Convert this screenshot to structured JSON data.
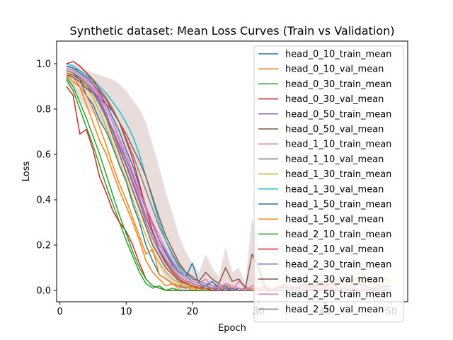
{
  "chart_data": {
    "type": "line",
    "title": "Synthetic dataset: Mean Loss Curves (Train vs Validation)",
    "xlabel": "Epoch",
    "ylabel": "Loss",
    "xlim": [
      -0.5,
      52.5
    ],
    "ylim": [
      -0.05,
      1.1
    ],
    "xticks": [
      0,
      10,
      20,
      30,
      40,
      50
    ],
    "yticks": [
      0.0,
      0.2,
      0.4,
      0.6,
      0.8,
      1.0
    ],
    "xtick_labels": [
      "0",
      "10",
      "20",
      "30",
      "40",
      "50"
    ],
    "ytick_labels": [
      "0.0",
      "0.2",
      "0.4",
      "0.6",
      "0.8",
      "1.0"
    ],
    "legend_position": "upper-right",
    "grid": false,
    "band": {
      "series": "head_2_30_val_mean",
      "color": "#8c564b",
      "opacity": 0.2
    },
    "band_lower": [
      0.91,
      0.88,
      0.84,
      0.8,
      0.78,
      0.74,
      0.7,
      0.64,
      0.57,
      0.5,
      0.42,
      0.34,
      0.27,
      0.18,
      0.1,
      0.05,
      0.02,
      0.0,
      0.0,
      0.0,
      0.0,
      0.0,
      0.0,
      0.0,
      0.0,
      0.0,
      0.0,
      0.0,
      0.0,
      0.0,
      0.0,
      0.0,
      0.0,
      0.0,
      0.0,
      0.0,
      0.0,
      0.0,
      0.0,
      0.0,
      0.0,
      0.0,
      0.0,
      0.0,
      0.0,
      0.0,
      0.0,
      0.0,
      0.0,
      0.0
    ],
    "band_upper": [
      0.99,
      1.0,
      0.99,
      0.97,
      0.96,
      0.95,
      0.94,
      0.93,
      0.91,
      0.88,
      0.84,
      0.8,
      0.74,
      0.64,
      0.54,
      0.43,
      0.34,
      0.24,
      0.17,
      0.12,
      0.08,
      0.16,
      0.1,
      0.06,
      0.19,
      0.08,
      0.1,
      0.03,
      0.32,
      0.2,
      0.02,
      0.0,
      0.03,
      0.02,
      0.03,
      0.02,
      0.06,
      0.03,
      0.05,
      0.03,
      0.07,
      0.02,
      0.02,
      0.0,
      0.06,
      0.04,
      0.02,
      0.02,
      0.04,
      0.03
    ],
    "x": [
      1,
      2,
      3,
      4,
      5,
      6,
      7,
      8,
      9,
      10,
      11,
      12,
      13,
      14,
      15,
      16,
      17,
      18,
      19,
      20,
      21,
      22,
      23,
      24,
      25,
      26,
      27,
      28,
      29,
      30,
      31,
      32,
      33,
      34,
      35,
      36,
      37,
      38,
      39,
      40,
      41,
      42,
      43,
      44,
      45,
      46,
      47,
      48,
      49,
      50
    ],
    "series": [
      {
        "name": "head_0_10_train_mean",
        "color": "#1f77b4",
        "values": [
          0.97,
          0.96,
          0.93,
          0.86,
          0.82,
          0.75,
          0.7,
          0.63,
          0.55,
          0.48,
          0.38,
          0.3,
          0.2,
          0.13,
          0.07,
          0.05,
          0.03,
          0.02,
          0.01,
          0.02,
          0.01,
          0.0,
          0.01,
          0.0,
          0.0,
          0.01,
          0.0,
          0.0,
          0.0,
          0.0,
          0.0,
          0.0,
          0.0,
          0.0,
          0.0,
          0.0,
          0.0,
          0.0,
          0.0,
          0.0,
          0.0,
          0.0,
          0.0,
          0.0,
          0.0,
          0.0,
          0.0,
          0.0,
          0.0,
          0.0
        ]
      },
      {
        "name": "head_0_10_val_mean",
        "color": "#ff7f0e",
        "values": [
          0.95,
          0.92,
          0.9,
          0.82,
          0.74,
          0.66,
          0.6,
          0.52,
          0.44,
          0.37,
          0.3,
          0.22,
          0.13,
          0.08,
          0.05,
          0.02,
          0.03,
          0.01,
          0.02,
          0.0,
          0.01,
          0.0,
          0.0,
          0.01,
          0.0,
          0.0,
          0.0,
          0.0,
          0.0,
          0.0,
          0.0,
          0.0,
          0.0,
          0.0,
          0.0,
          0.0,
          0.0,
          0.0,
          0.0,
          0.0,
          0.0,
          0.0,
          0.0,
          0.0,
          0.0,
          0.0,
          0.0,
          0.0,
          0.0,
          0.0
        ]
      },
      {
        "name": "head_0_30_train_mean",
        "color": "#2ca02c",
        "values": [
          0.93,
          0.88,
          0.8,
          0.72,
          0.64,
          0.55,
          0.46,
          0.38,
          0.3,
          0.22,
          0.15,
          0.08,
          0.03,
          0.01,
          0.02,
          0.0,
          0.01,
          0.0,
          0.0,
          0.0,
          0.0,
          0.0,
          0.0,
          0.0,
          0.0,
          0.0,
          0.0,
          0.0,
          0.0,
          0.0,
          0.0,
          0.0,
          0.0,
          0.0,
          0.0,
          0.0,
          0.0,
          0.0,
          0.0,
          0.0,
          0.0,
          0.0,
          0.0,
          0.0,
          0.0,
          0.0,
          0.0,
          0.0,
          0.0,
          0.0
        ]
      },
      {
        "name": "head_0_30_val_mean",
        "color": "#d62728",
        "values": [
          0.9,
          0.86,
          0.69,
          0.71,
          0.62,
          0.5,
          0.43,
          0.35,
          0.3,
          0.26,
          0.2,
          0.12,
          0.05,
          0.02,
          0.01,
          0.0,
          0.0,
          0.0,
          0.0,
          0.0,
          0.0,
          0.0,
          0.0,
          0.0,
          0.0,
          0.0,
          0.0,
          0.0,
          0.0,
          0.0,
          0.0,
          0.0,
          0.0,
          0.0,
          0.0,
          0.0,
          0.0,
          0.0,
          0.0,
          0.0,
          0.0,
          0.0,
          0.0,
          0.0,
          0.0,
          0.0,
          0.0,
          0.0,
          0.0,
          0.0
        ]
      },
      {
        "name": "head_0_50_train_mean",
        "color": "#9467bd",
        "values": [
          0.98,
          0.97,
          0.95,
          0.92,
          0.88,
          0.84,
          0.78,
          0.7,
          0.62,
          0.55,
          0.47,
          0.39,
          0.3,
          0.23,
          0.17,
          0.12,
          0.08,
          0.05,
          0.03,
          0.02,
          0.01,
          0.01,
          0.0,
          0.01,
          0.0,
          0.0,
          0.0,
          0.0,
          0.0,
          0.0,
          0.0,
          0.0,
          0.0,
          0.0,
          0.0,
          0.0,
          0.0,
          0.0,
          0.0,
          0.0,
          0.0,
          0.0,
          0.0,
          0.0,
          0.0,
          0.0,
          0.0,
          0.0,
          0.0,
          0.0
        ]
      },
      {
        "name": "head_0_50_val_mean",
        "color": "#8c564b",
        "values": [
          0.96,
          0.95,
          0.93,
          0.9,
          0.87,
          0.82,
          0.76,
          0.68,
          0.6,
          0.52,
          0.44,
          0.36,
          0.28,
          0.2,
          0.15,
          0.1,
          0.07,
          0.04,
          0.03,
          0.02,
          0.01,
          0.02,
          0.01,
          0.0,
          0.01,
          0.0,
          0.0,
          0.0,
          0.0,
          0.0,
          0.0,
          0.0,
          0.0,
          0.0,
          0.0,
          0.0,
          0.0,
          0.0,
          0.0,
          0.0,
          0.0,
          0.0,
          0.0,
          0.0,
          0.0,
          0.0,
          0.0,
          0.0,
          0.0,
          0.0
        ]
      },
      {
        "name": "head_1_10_train_mean",
        "color": "#e377c2",
        "values": [
          0.99,
          0.98,
          0.96,
          0.93,
          0.9,
          0.86,
          0.8,
          0.74,
          0.66,
          0.58,
          0.5,
          0.41,
          0.33,
          0.26,
          0.2,
          0.14,
          0.1,
          0.07,
          0.05,
          0.03,
          0.02,
          0.02,
          0.01,
          0.03,
          0.01,
          0.0,
          0.04,
          0.02,
          0.0,
          0.01,
          0.02,
          0.0,
          0.01,
          0.02,
          0.0,
          0.01,
          0.0,
          0.02,
          0.01,
          0.0,
          0.01,
          0.0,
          0.0,
          0.01,
          0.0,
          0.0,
          0.01,
          0.0,
          0.0,
          0.0
        ]
      },
      {
        "name": "head_1_10_val_mean",
        "color": "#7f7f7f",
        "values": [
          0.99,
          0.98,
          0.97,
          0.95,
          0.92,
          0.89,
          0.85,
          0.8,
          0.74,
          0.67,
          0.6,
          0.52,
          0.44,
          0.36,
          0.28,
          0.22,
          0.16,
          0.11,
          0.08,
          0.05,
          0.04,
          0.03,
          0.02,
          0.02,
          0.01,
          0.01,
          0.0,
          0.01,
          0.0,
          0.0,
          0.0,
          0.0,
          0.0,
          0.0,
          0.0,
          0.0,
          0.0,
          0.0,
          0.0,
          0.0,
          0.0,
          0.0,
          0.0,
          0.0,
          0.0,
          0.0,
          0.0,
          0.0,
          0.0,
          0.0
        ]
      },
      {
        "name": "head_1_30_train_mean",
        "color": "#bcbd22",
        "values": [
          0.97,
          0.96,
          0.94,
          0.9,
          0.85,
          0.79,
          0.72,
          0.64,
          0.56,
          0.49,
          0.4,
          0.32,
          0.24,
          0.17,
          0.12,
          0.08,
          0.05,
          0.03,
          0.02,
          0.01,
          0.01,
          0.0,
          0.0,
          0.0,
          0.0,
          0.0,
          0.0,
          0.0,
          0.0,
          0.0,
          0.0,
          0.0,
          0.0,
          0.0,
          0.0,
          0.0,
          0.0,
          0.0,
          0.0,
          0.0,
          0.0,
          0.0,
          0.0,
          0.0,
          0.0,
          0.0,
          0.0,
          0.0,
          0.0,
          0.0
        ]
      },
      {
        "name": "head_1_30_val_mean",
        "color": "#17becf",
        "values": [
          1.0,
          0.99,
          0.97,
          0.95,
          0.93,
          0.9,
          0.87,
          0.83,
          0.79,
          0.74,
          0.68,
          0.6,
          0.5,
          0.4,
          0.3,
          0.22,
          0.15,
          0.1,
          0.07,
          0.04,
          0.03,
          0.02,
          0.01,
          0.0,
          0.01,
          0.0,
          0.0,
          0.0,
          0.0,
          0.0,
          0.0,
          0.0,
          0.0,
          0.0,
          0.0,
          0.0,
          0.0,
          0.0,
          0.0,
          0.0,
          0.0,
          0.0,
          0.0,
          0.0,
          0.0,
          0.0,
          0.0,
          0.0,
          0.0,
          0.0
        ]
      },
      {
        "name": "head_1_50_train_mean",
        "color": "#1f77b4",
        "values": [
          0.99,
          0.98,
          0.96,
          0.94,
          0.91,
          0.87,
          0.82,
          0.76,
          0.7,
          0.62,
          0.55,
          0.46,
          0.37,
          0.29,
          0.22,
          0.16,
          0.11,
          0.08,
          0.06,
          0.12,
          0.03,
          0.02,
          0.04,
          0.01,
          0.02,
          0.0,
          0.01,
          0.0,
          0.0,
          0.0,
          0.0,
          0.0,
          0.0,
          0.0,
          0.0,
          0.0,
          0.0,
          0.0,
          0.0,
          0.0,
          0.0,
          0.0,
          0.0,
          0.0,
          0.0,
          0.0,
          0.0,
          0.0,
          0.0,
          0.0
        ]
      },
      {
        "name": "head_1_50_val_mean",
        "color": "#ff7f0e",
        "values": [
          0.96,
          0.94,
          0.9,
          0.86,
          0.8,
          0.72,
          0.64,
          0.55,
          0.47,
          0.4,
          0.32,
          0.24,
          0.16,
          0.18,
          0.07,
          0.05,
          0.03,
          0.02,
          0.04,
          0.01,
          0.02,
          0.0,
          0.01,
          0.0,
          0.03,
          0.01,
          0.0,
          0.0,
          0.01,
          0.0,
          0.02,
          0.0,
          0.01,
          0.03,
          0.0,
          0.01,
          0.02,
          0.0,
          0.04,
          0.03,
          0.01,
          0.05,
          0.02,
          0.04,
          0.06,
          0.03,
          0.05,
          0.02,
          0.05,
          0.04
        ]
      },
      {
        "name": "head_2_10_train_mean",
        "color": "#2ca02c",
        "values": [
          0.94,
          0.9,
          0.83,
          0.76,
          0.68,
          0.6,
          0.51,
          0.42,
          0.33,
          0.25,
          0.17,
          0.1,
          0.05,
          0.02,
          0.01,
          0.0,
          0.0,
          0.0,
          0.0,
          0.0,
          0.0,
          0.0,
          0.0,
          0.0,
          0.0,
          0.0,
          0.0,
          0.0,
          0.0,
          0.0,
          0.0,
          0.0,
          0.0,
          0.0,
          0.0,
          0.0,
          0.0,
          0.0,
          0.0,
          0.0,
          0.0,
          0.0,
          0.0,
          0.0,
          0.0,
          0.0,
          0.0,
          0.0,
          0.0,
          0.0
        ]
      },
      {
        "name": "head_2_10_val_mean",
        "color": "#d62728",
        "values": [
          1.0,
          1.01,
          0.99,
          0.96,
          0.93,
          0.88,
          0.84,
          0.79,
          0.74,
          0.66,
          0.58,
          0.47,
          0.36,
          0.26,
          0.18,
          0.12,
          0.08,
          0.05,
          0.03,
          0.02,
          0.01,
          0.01,
          0.0,
          0.0,
          0.0,
          0.0,
          0.0,
          0.0,
          0.0,
          0.0,
          0.0,
          0.0,
          0.0,
          0.0,
          0.0,
          0.0,
          0.0,
          0.0,
          0.0,
          0.0,
          0.0,
          0.0,
          0.0,
          0.0,
          0.0,
          0.0,
          0.0,
          0.0,
          0.0,
          0.0
        ]
      },
      {
        "name": "head_2_30_train_mean",
        "color": "#9467bd",
        "values": [
          0.98,
          0.97,
          0.95,
          0.92,
          0.88,
          0.83,
          0.77,
          0.71,
          0.64,
          0.58,
          0.51,
          0.43,
          0.36,
          0.29,
          0.22,
          0.17,
          0.12,
          0.09,
          0.06,
          0.04,
          0.03,
          0.02,
          0.01,
          0.01,
          0.0,
          0.01,
          0.0,
          0.0,
          0.0,
          0.0,
          0.0,
          0.0,
          0.0,
          0.0,
          0.0,
          0.0,
          0.0,
          0.0,
          0.0,
          0.0,
          0.0,
          0.0,
          0.0,
          0.0,
          0.0,
          0.0,
          0.0,
          0.0,
          0.0,
          0.0
        ]
      },
      {
        "name": "head_2_30_val_mean",
        "color": "#8c564b",
        "values": [
          0.95,
          0.94,
          0.92,
          0.89,
          0.87,
          0.85,
          0.82,
          0.79,
          0.74,
          0.69,
          0.63,
          0.57,
          0.5,
          0.41,
          0.32,
          0.24,
          0.18,
          0.12,
          0.08,
          0.06,
          0.04,
          0.08,
          0.05,
          0.03,
          0.1,
          0.04,
          0.05,
          0.01,
          0.16,
          0.1,
          0.01,
          0.0,
          0.015,
          0.01,
          0.015,
          0.01,
          0.03,
          0.015,
          0.025,
          0.015,
          0.035,
          0.01,
          0.01,
          0.0,
          0.03,
          0.02,
          0.01,
          0.01,
          0.02,
          0.015
        ]
      },
      {
        "name": "head_2_50_train_mean",
        "color": "#e377c2",
        "values": [
          0.98,
          0.97,
          0.95,
          0.92,
          0.89,
          0.85,
          0.8,
          0.74,
          0.67,
          0.6,
          0.52,
          0.44,
          0.37,
          0.3,
          0.24,
          0.18,
          0.13,
          0.09,
          0.06,
          0.04,
          0.03,
          0.05,
          0.02,
          0.01,
          0.03,
          0.02,
          0.01,
          0.0,
          0.02,
          0.01,
          0.0,
          0.01,
          0.0,
          0.02,
          0.01,
          0.0,
          0.01,
          0.03,
          0.0,
          0.01,
          0.0,
          0.01,
          0.0,
          0.02,
          0.0,
          0.01,
          0.0,
          0.0,
          0.01,
          0.0
        ]
      },
      {
        "name": "head_2_50_val_mean",
        "color": "#7f7f7f",
        "values": [
          0.97,
          0.96,
          0.94,
          0.91,
          0.87,
          0.82,
          0.76,
          0.7,
          0.63,
          0.56,
          0.48,
          0.4,
          0.32,
          0.25,
          0.18,
          0.13,
          0.09,
          0.06,
          0.04,
          0.03,
          0.02,
          0.01,
          0.01,
          0.0,
          0.01,
          0.0,
          0.0,
          0.0,
          0.0,
          0.0,
          0.0,
          0.0,
          0.0,
          0.0,
          0.0,
          0.0,
          0.0,
          0.0,
          0.0,
          0.0,
          0.0,
          0.0,
          0.0,
          0.0,
          0.0,
          0.0,
          0.0,
          0.0,
          0.0,
          0.0
        ]
      }
    ]
  }
}
